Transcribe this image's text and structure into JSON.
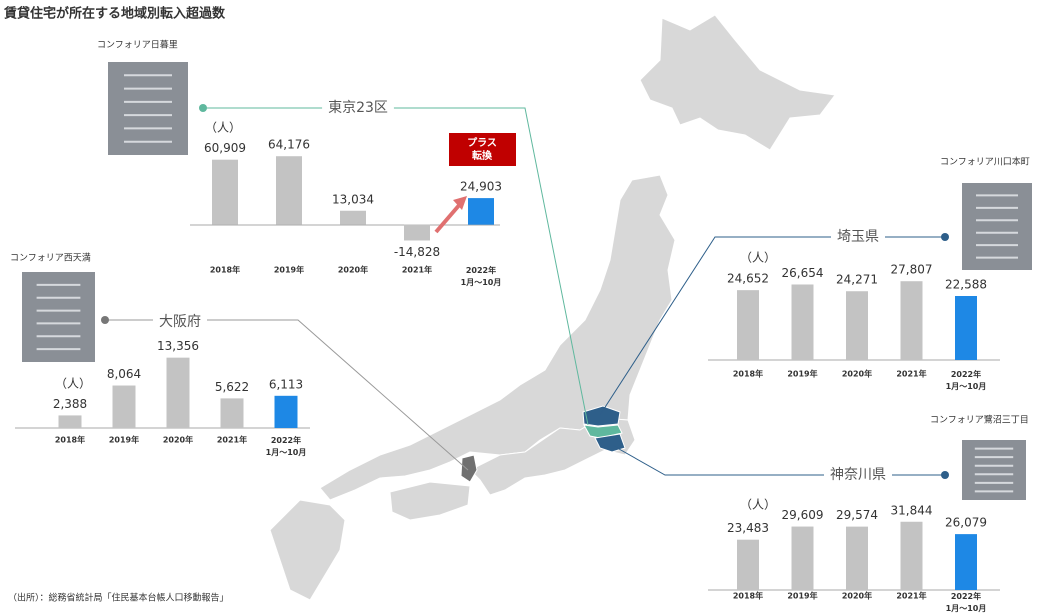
{
  "title": "賃貸住宅が所在する地域別転入超過数",
  "source": "（出所）：総務省統計局「住民基本台帳人口移動報告」",
  "chart_data": [
    {
      "type": "bar",
      "property": "コンフォリア日暮里",
      "region": "東京23区",
      "unit": "（人）",
      "badge": "プラス\n転換",
      "categories": [
        "2018年",
        "2019年",
        "2020年",
        "2021年",
        "2022年\n1月～10月"
      ],
      "values": [
        60909,
        64176,
        13034,
        -14828,
        24903
      ],
      "value_labels": [
        "60,909",
        "64,176",
        "13,034",
        "-14,828",
        "24,903"
      ],
      "colors": [
        "#c3c3c3",
        "#c3c3c3",
        "#c3c3c3",
        "#c3c3c3",
        "#1e88e5"
      ],
      "ylim": [
        -20000,
        70000
      ]
    },
    {
      "type": "bar",
      "property": "コンフォリア西天満",
      "region": "大阪府",
      "unit": "（人）",
      "categories": [
        "2018年",
        "2019年",
        "2020年",
        "2021年",
        "2022年\n1月～10月"
      ],
      "values": [
        2388,
        8064,
        13356,
        5622,
        6113
      ],
      "value_labels": [
        "2,388",
        "8,064",
        "13,356",
        "5,622",
        "6,113"
      ],
      "colors": [
        "#c3c3c3",
        "#c3c3c3",
        "#c3c3c3",
        "#c3c3c3",
        "#1e88e5"
      ],
      "ylim": [
        0,
        15000
      ]
    },
    {
      "type": "bar",
      "property": "コンフォリア川口本町",
      "region": "埼玉県",
      "unit": "（人）",
      "categories": [
        "2018年",
        "2019年",
        "2020年",
        "2021年",
        "2022年\n1月～10月"
      ],
      "values": [
        24652,
        26654,
        24271,
        27807,
        22588
      ],
      "value_labels": [
        "24,652",
        "26,654",
        "24,271",
        "27,807",
        "22,588"
      ],
      "colors": [
        "#c3c3c3",
        "#c3c3c3",
        "#c3c3c3",
        "#c3c3c3",
        "#1e88e5"
      ],
      "ylim": [
        0,
        30000
      ]
    },
    {
      "type": "bar",
      "property": "コンフォリア鷺沼三丁目",
      "region": "神奈川県",
      "unit": "（人）",
      "categories": [
        "2018年",
        "2019年",
        "2020年",
        "2021年",
        "2022年\n1月～10月"
      ],
      "values": [
        23483,
        29609,
        29574,
        31844,
        26079
      ],
      "value_labels": [
        "23,483",
        "29,609",
        "29,574",
        "31,844",
        "26,079"
      ],
      "colors": [
        "#c3c3c3",
        "#c3c3c3",
        "#c3c3c3",
        "#c3c3c3",
        "#1e88e5"
      ],
      "ylim": [
        0,
        35000
      ]
    }
  ]
}
